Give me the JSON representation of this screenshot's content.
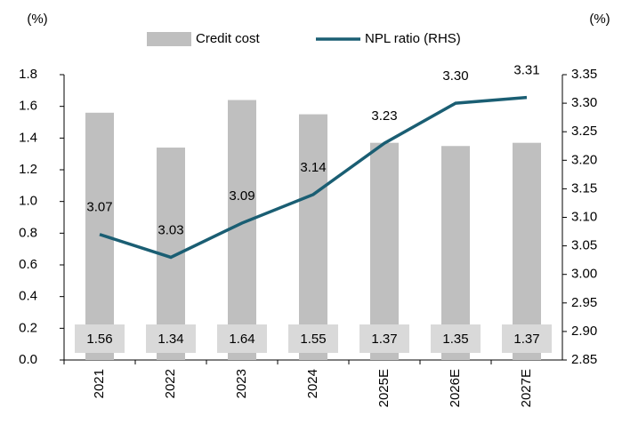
{
  "chart_data": {
    "type": "bar_line",
    "y_unit_label": "(%)",
    "y2_unit_label": "(%)",
    "categories": [
      "2021",
      "2022",
      "2023",
      "2024",
      "2025E",
      "2026E",
      "2027E"
    ],
    "series": [
      {
        "name": "Credit cost",
        "type": "bar",
        "color": "#bfbfbf",
        "axis": "y",
        "values": [
          1.56,
          1.34,
          1.64,
          1.55,
          1.37,
          1.35,
          1.37
        ]
      },
      {
        "name": "NPL ratio (RHS)",
        "type": "line",
        "color": "#1a5e73",
        "axis": "y2",
        "values": [
          3.07,
          3.03,
          3.09,
          3.14,
          3.23,
          3.3,
          3.31
        ],
        "value_labels": [
          "3.07",
          "3.03",
          "3.09",
          "3.14",
          "3.23",
          "3.30",
          "3.31"
        ]
      }
    ],
    "ylim": [
      0,
      1.8
    ],
    "yticks": [
      {
        "value": 0,
        "label": "0.0"
      },
      0.2,
      0.4,
      0.6,
      0.8,
      {
        "value": 1,
        "label": "1.0"
      },
      1.2,
      1.4,
      1.6,
      1.8
    ],
    "y2lim": [
      2.85,
      3.35
    ],
    "y2ticks": [
      2.85,
      {
        "value": 2.9,
        "label": "2.90"
      },
      2.95,
      {
        "value": 3,
        "label": "3.00"
      },
      3.05,
      {
        "value": 3.1,
        "label": "3.10"
      },
      3.15,
      {
        "value": 3.2,
        "label": "3.20"
      },
      3.25,
      {
        "value": 3.3,
        "label": "3.30"
      },
      3.35
    ],
    "grid": false,
    "legend": "top"
  }
}
